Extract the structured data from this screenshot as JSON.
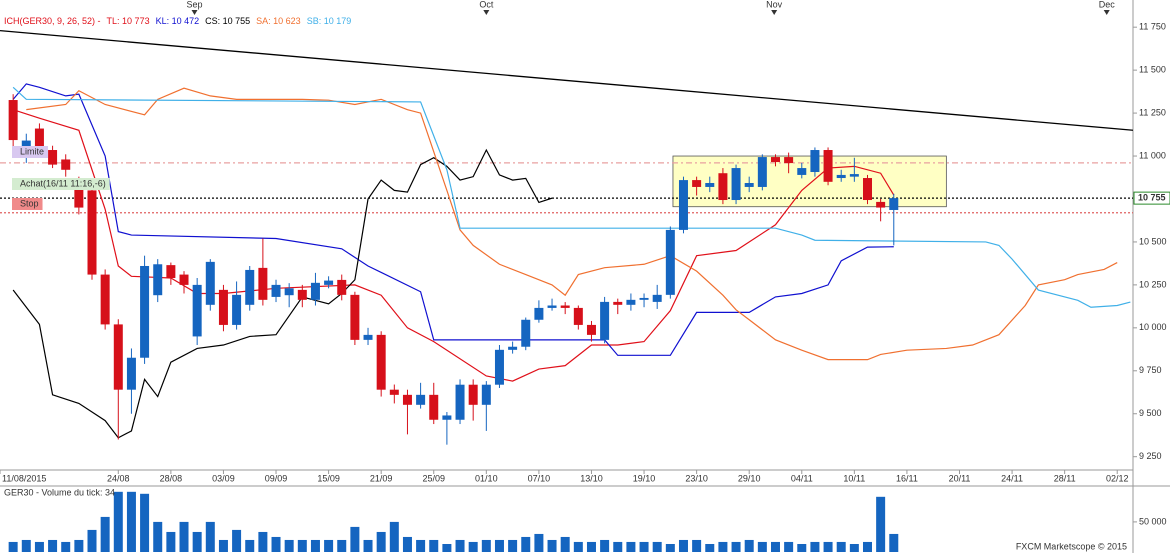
{
  "chart_data": [
    {
      "type": "candlestick",
      "title": "ICH(GER30, 9, 26, 52) -",
      "title_color": "#e0101a",
      "x": [
        0,
        1,
        2,
        3,
        4,
        5,
        6,
        7,
        8,
        9,
        10,
        11,
        12,
        13,
        14,
        15,
        16,
        17,
        18,
        19,
        20,
        21,
        22,
        23,
        24,
        25,
        26,
        27,
        28,
        29,
        30,
        31,
        32,
        33,
        34,
        35,
        36,
        37,
        38,
        39,
        40,
        41,
        42,
        43,
        44,
        45,
        46,
        47,
        48,
        49,
        50,
        51,
        52,
        53,
        54,
        55,
        56,
        57,
        58,
        59,
        60,
        61,
        62,
        63,
        64,
        65,
        66,
        67
      ],
      "open": [
        11326,
        11035,
        11160,
        11035,
        10980,
        10860,
        10800,
        10310,
        10020,
        9640,
        9826,
        10190,
        10365,
        10310,
        9950,
        10134,
        10221,
        10017,
        10134,
        10349,
        10180,
        10190,
        10221,
        10163,
        10250,
        10279,
        10192,
        9930,
        9959,
        9640,
        9610,
        9552,
        9610,
        9465,
        9465,
        9669,
        9552,
        9669,
        9872,
        9890,
        10047,
        10116,
        10130,
        10116,
        10017,
        9930,
        10151,
        10134,
        10163,
        10151,
        10192,
        10570,
        10860,
        10820,
        10900,
        10744,
        10820,
        10820,
        10994,
        10994,
        10890,
        10907,
        11035,
        10872,
        10880,
        10872,
        10733,
        10686
      ],
      "high": [
        11360,
        11130,
        11190,
        11060,
        11010,
        10880,
        10830,
        10340,
        10050,
        9880,
        10420,
        10400,
        10380,
        10330,
        10290,
        10400,
        10250,
        10270,
        10360,
        10520,
        10280,
        10260,
        10250,
        10320,
        10300,
        10310,
        10210,
        10000,
        9980,
        9670,
        9640,
        9680,
        9680,
        9510,
        9700,
        9700,
        9690,
        9900,
        9920,
        10060,
        10160,
        10170,
        10150,
        10130,
        10040,
        10180,
        10170,
        10200,
        10200,
        10250,
        10590,
        10880,
        10880,
        10880,
        10930,
        10950,
        10880,
        11010,
        11010,
        11020,
        10960,
        11050,
        11050,
        10920,
        10990,
        10890,
        10750,
        10780
      ],
      "low": [
        11040,
        10960,
        11000,
        10930,
        10880,
        10660,
        10280,
        9990,
        9350,
        9500,
        9790,
        10150,
        10250,
        10200,
        9900,
        10100,
        9980,
        9990,
        10100,
        10130,
        10150,
        10120,
        10120,
        10130,
        10230,
        10160,
        9900,
        9900,
        9600,
        9560,
        9380,
        9530,
        9440,
        9320,
        9440,
        9460,
        9400,
        9650,
        9850,
        9870,
        10030,
        10100,
        10080,
        9990,
        9920,
        9910,
        10080,
        10100,
        10120,
        10110,
        10170,
        10550,
        10770,
        10790,
        10720,
        10720,
        10790,
        10800,
        10940,
        10900,
        10870,
        10880,
        10830,
        10850,
        10850,
        10720,
        10620,
        10480
      ],
      "close": [
        11093,
        11090,
        11030,
        10950,
        10920,
        10700,
        10310,
        10020,
        9640,
        9826,
        10360,
        10370,
        10290,
        10250,
        10250,
        10384,
        10017,
        10192,
        10337,
        10163,
        10250,
        10230,
        10163,
        10262,
        10275,
        10192,
        9930,
        9959,
        9640,
        9610,
        9552,
        9610,
        9465,
        9490,
        9669,
        9552,
        9669,
        9872,
        9890,
        10047,
        10116,
        10130,
        10116,
        10017,
        9959,
        10151,
        10134,
        10163,
        10174,
        10192,
        10570,
        10860,
        10820,
        10843,
        10744,
        10930,
        10843,
        10994,
        10965,
        10959,
        10930,
        11035,
        10850,
        10890,
        10895,
        10744,
        10700,
        10755
      ],
      "up_color": "#1565c0",
      "down_color": "#d6101a",
      "series": [
        {
          "name": "TL: 10 773",
          "color": "#e0101a",
          "x": [
            0,
            2,
            5,
            7,
            8,
            9,
            12,
            14,
            16,
            20,
            26,
            28,
            30,
            32,
            36,
            38,
            40,
            42,
            44,
            46,
            48,
            50,
            52,
            55,
            58,
            60,
            62,
            64,
            66,
            67
          ],
          "values": [
            11270,
            11220,
            11150,
            10690,
            10360,
            10300,
            10290,
            10200,
            10200,
            10230,
            10250,
            10190,
            10000,
            9920,
            9720,
            9690,
            9760,
            9780,
            9900,
            9900,
            9920,
            10100,
            10420,
            10450,
            10600,
            10800,
            10930,
            10940,
            10900,
            10773
          ]
        },
        {
          "name": "KL: 10 472",
          "color": "#1010d0",
          "x": [
            0,
            1,
            2,
            4,
            5,
            7,
            8,
            9,
            20,
            25,
            27,
            31,
            32,
            45,
            46,
            50,
            52,
            56,
            58,
            60,
            62,
            63,
            65,
            67
          ],
          "values": [
            11330,
            11420,
            11400,
            11350,
            11360,
            11000,
            10560,
            10540,
            10520,
            10460,
            10360,
            10210,
            9930,
            9930,
            9840,
            9840,
            10090,
            10090,
            10180,
            10200,
            10250,
            10390,
            10470,
            10472
          ]
        },
        {
          "name": "CS: 10 755",
          "color": "#000000",
          "x": [
            0,
            2,
            3,
            5,
            7,
            8,
            9,
            10,
            11,
            12,
            14,
            16,
            18,
            20,
            22,
            24,
            25,
            26,
            27,
            28,
            29,
            30,
            31,
            32,
            33,
            34,
            35,
            36,
            37,
            38,
            39,
            40,
            41
          ],
          "values": [
            10220,
            10020,
            9610,
            9560,
            9460,
            9360,
            9400,
            9700,
            9600,
            9800,
            9880,
            9900,
            9950,
            9960,
            10180,
            10140,
            10200,
            10280,
            10750,
            10860,
            10800,
            10790,
            10950,
            10990,
            10940,
            10860,
            10880,
            11035,
            10890,
            10860,
            10870,
            10730,
            10755
          ]
        },
        {
          "name": "SA: 10 623",
          "color": "#f07030",
          "x": [
            1,
            4,
            5,
            7,
            10,
            11,
            13,
            15,
            17,
            19,
            22,
            24,
            26,
            28,
            30,
            31,
            33,
            34,
            35,
            37,
            39,
            41,
            42,
            43,
            45,
            48,
            50,
            52,
            54,
            55,
            56,
            58,
            60,
            62,
            65,
            66,
            68,
            71,
            73,
            75,
            77,
            78,
            80,
            81,
            83,
            84
          ],
          "values": [
            11270,
            11300,
            11380,
            11300,
            11240,
            11330,
            11395,
            11350,
            11330,
            11330,
            11330,
            11325,
            11300,
            11330,
            11270,
            11250,
            10800,
            10570,
            10480,
            10370,
            10310,
            10250,
            10190,
            10310,
            10350,
            10370,
            10420,
            10330,
            10190,
            10105,
            10047,
            9930,
            9870,
            9815,
            9815,
            9845,
            9870,
            9880,
            9900,
            9960,
            10130,
            10250,
            10280,
            10310,
            10340,
            10380
          ]
        },
        {
          "name": "SB: 10 179",
          "color": "#40b0e8",
          "x": [
            0,
            1,
            31,
            33,
            34,
            58,
            60,
            61,
            74,
            75,
            76,
            78,
            81,
            82,
            84,
            85
          ],
          "values": [
            11400,
            11330,
            11315,
            10920,
            10580,
            10580,
            10540,
            10510,
            10500,
            10480,
            10400,
            10220,
            10160,
            10120,
            10130,
            10150
          ]
        }
      ],
      "trendline": {
        "color": "#000000",
        "x": [
          -1,
          85.2
        ],
        "values": [
          11730,
          11150
        ]
      },
      "levels": [
        {
          "value": 10755,
          "color": "#000000",
          "style": "dotted"
        },
        {
          "value": 10960,
          "color": "#e8a0a0",
          "style": "dashdot"
        },
        {
          "value": 10670,
          "color": "#e06060",
          "style": "dotted"
        }
      ],
      "current_price": {
        "value": 10755,
        "label": "10 755"
      },
      "orders": [
        {
          "label": "Limite",
          "color": "#d8c8f0"
        },
        {
          "label": "Achat(16/11 11:16,-6)",
          "color": "#d4ecd0"
        },
        {
          "label": "Stop",
          "color": "#f08a8a"
        }
      ],
      "highlight": {
        "x": [
          50.2,
          71
        ],
        "y": [
          10705,
          11000
        ],
        "color": "#ffffc4"
      },
      "months": [
        {
          "value": 13.8,
          "label": "Sep"
        },
        {
          "value": 36,
          "label": "Oct"
        },
        {
          "value": 57.9,
          "label": "Nov"
        },
        {
          "value": 83.2,
          "label": "Dec"
        }
      ],
      "xlim": [
        -1,
        85.2
      ],
      "xticks": [
        {
          "value": -1,
          "label": "11/08/2015"
        },
        {
          "value": 8,
          "label": "24/08"
        },
        {
          "value": 12,
          "label": "28/08"
        },
        {
          "value": 16,
          "label": "03/09"
        },
        {
          "value": 20,
          "label": "09/09"
        },
        {
          "value": 24,
          "label": "15/09"
        },
        {
          "value": 28,
          "label": "21/09"
        },
        {
          "value": 32,
          "label": "25/09"
        },
        {
          "value": 36,
          "label": "01/10"
        },
        {
          "value": 40,
          "label": "07/10"
        },
        {
          "value": 44,
          "label": "13/10"
        },
        {
          "value": 48,
          "label": "19/10"
        },
        {
          "value": 52,
          "label": "23/10"
        },
        {
          "value": 56,
          "label": "29/10"
        },
        {
          "value": 60,
          "label": "04/11"
        },
        {
          "value": 64,
          "label": "10/11"
        },
        {
          "value": 68,
          "label": "16/11"
        },
        {
          "value": 72,
          "label": "20/11"
        },
        {
          "value": 76,
          "label": "24/11"
        },
        {
          "value": 80,
          "label": "28/11"
        },
        {
          "value": 84,
          "label": "02/12"
        }
      ],
      "ylim": [
        9190,
        11850
      ],
      "yticks": [
        {
          "value": 9250,
          "label": "9 250"
        },
        {
          "value": 9500,
          "label": "9 500"
        },
        {
          "value": 9750,
          "label": "9 750"
        },
        {
          "value": 10000,
          "label": "10 000"
        },
        {
          "value": 10250,
          "label": "10 250"
        },
        {
          "value": 10500,
          "label": "10 500"
        },
        {
          "value": 10750,
          "label": "10 750"
        },
        {
          "value": 11000,
          "label": "11 000"
        },
        {
          "value": 11250,
          "label": "11 250"
        },
        {
          "value": 11500,
          "label": "11 500"
        },
        {
          "value": 11750,
          "label": "11 750"
        }
      ]
    },
    {
      "type": "bar",
      "title": "GER30 - Volume du tick: 34",
      "color": "#1565c0",
      "x": [
        0,
        1,
        2,
        3,
        4,
        5,
        6,
        7,
        8,
        9,
        10,
        11,
        12,
        13,
        14,
        15,
        16,
        17,
        18,
        19,
        20,
        21,
        22,
        23,
        24,
        25,
        26,
        27,
        28,
        29,
        30,
        31,
        32,
        33,
        34,
        35,
        36,
        37,
        38,
        39,
        40,
        41,
        42,
        43,
        44,
        45,
        46,
        47,
        48,
        49,
        50,
        51,
        52,
        53,
        54,
        55,
        56,
        57,
        58,
        59,
        60,
        61,
        62,
        63,
        64,
        65,
        66,
        67
      ],
      "values": [
        16700,
        20000,
        16700,
        20000,
        16700,
        20000,
        36700,
        58300,
        100000,
        100000,
        96700,
        50000,
        33300,
        50000,
        33300,
        50000,
        20000,
        36700,
        20000,
        33300,
        25000,
        20000,
        20000,
        20000,
        20000,
        20000,
        41700,
        20000,
        33300,
        50000,
        25000,
        20000,
        20000,
        13300,
        20000,
        16700,
        20000,
        20000,
        20000,
        25000,
        30000,
        20000,
        25000,
        16700,
        16700,
        20000,
        16700,
        16700,
        16700,
        16700,
        13300,
        20000,
        20000,
        13300,
        16700,
        16700,
        20000,
        16700,
        16700,
        16700,
        13300,
        16700,
        16700,
        16700,
        13300,
        16700,
        91700,
        30000
      ],
      "xlim": [
        -1,
        85.2
      ],
      "ylim": [
        0,
        108000
      ],
      "yticks": [
        {
          "value": 50000,
          "label": "50 000"
        }
      ]
    }
  ],
  "footer": "FXCM Marketscope © 2015"
}
